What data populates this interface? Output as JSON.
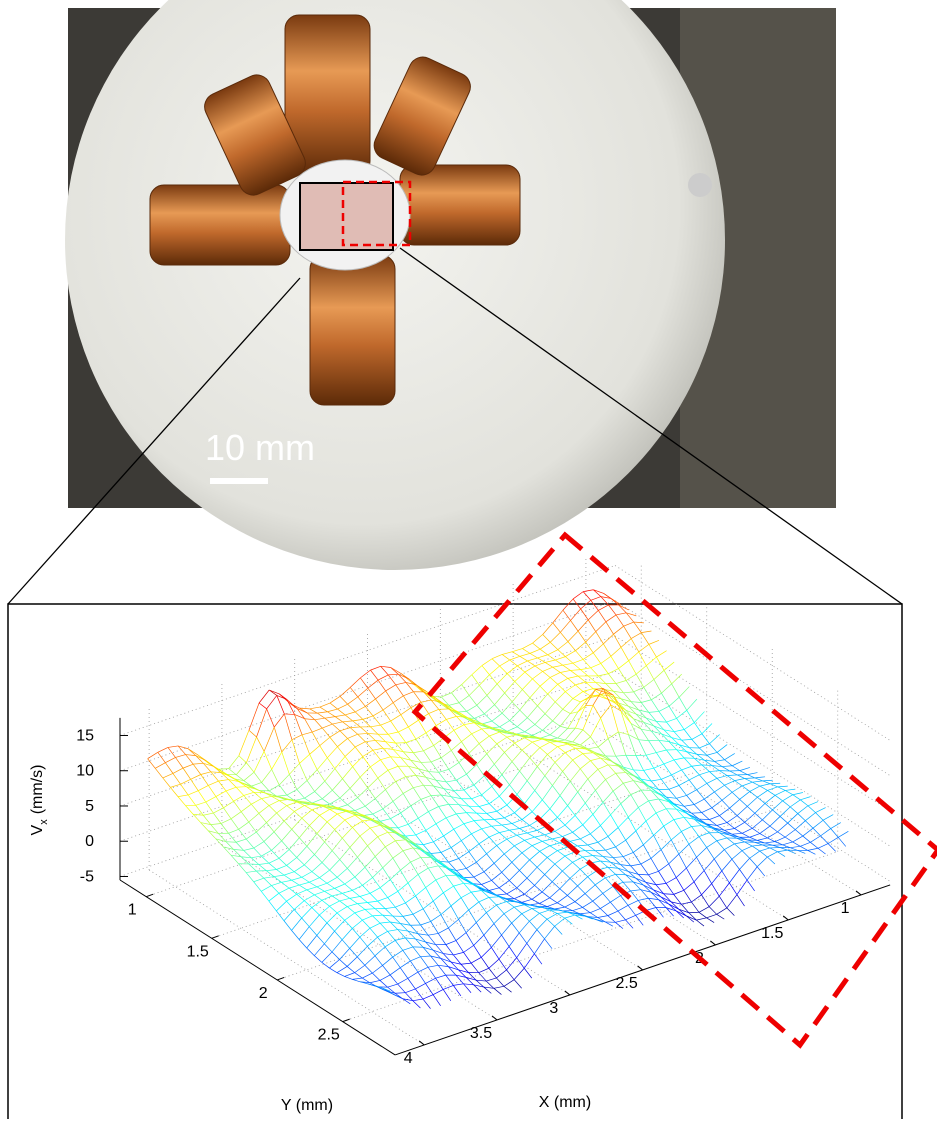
{
  "figure": {
    "scale_bar": "10 mm"
  },
  "chart_data": {
    "type": "surface3d",
    "zlabel": {
      "text": "V",
      "subscript": "x",
      "unit": "(mm/s)"
    },
    "xlabel": "X (mm)",
    "ylabel": "Y (mm)",
    "xlim": [
      4.2,
      0.8
    ],
    "ylim": [
      0.8,
      2.9
    ],
    "zlim": [
      -5.5,
      17.5
    ],
    "xticks": [
      4,
      3.5,
      3,
      2.5,
      2,
      1.5,
      1
    ],
    "yticks": [
      1,
      1.5,
      2,
      2.5
    ],
    "zticks": [
      -5,
      0,
      5,
      10,
      15
    ],
    "grid": true,
    "colormap": "jet"
  }
}
